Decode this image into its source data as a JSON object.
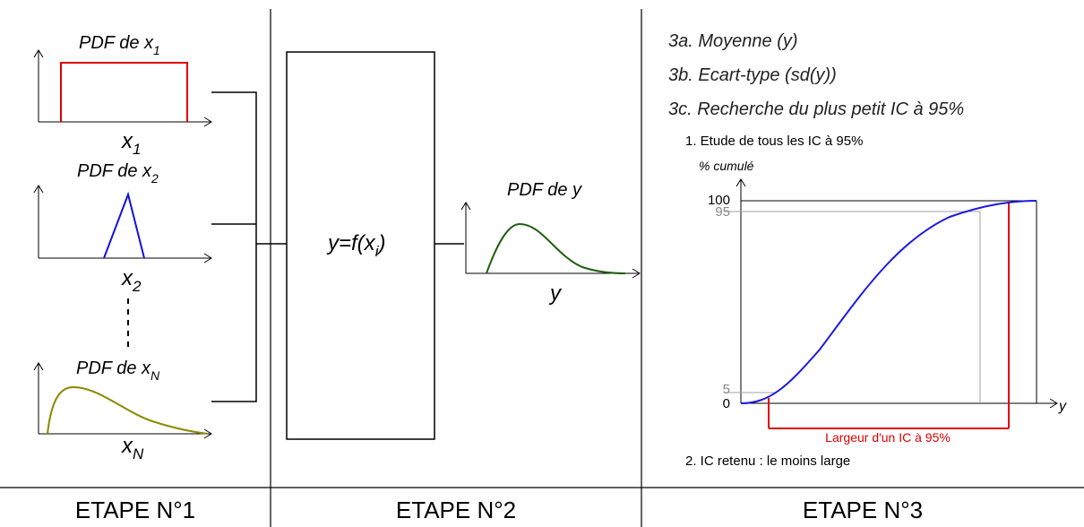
{
  "step1": {
    "pdf_labels": [
      {
        "prefix": "PDF de x",
        "sub": "1"
      },
      {
        "prefix": "PDF de x",
        "sub": "2"
      },
      {
        "prefix": "PDF de x",
        "sub": "N"
      }
    ],
    "axis_labels": [
      {
        "main": "x",
        "sub": "1"
      },
      {
        "main": "x",
        "sub": "2"
      },
      {
        "main": "x",
        "sub": "N"
      }
    ],
    "colors": {
      "uniform": "#e00000",
      "triangle": "#1010e0",
      "skewed": "#8a8a00"
    }
  },
  "step2": {
    "function": {
      "main": "y=f(x",
      "sub": "i",
      "close": ")"
    },
    "output_label": "PDF de y",
    "output_axis": "y",
    "curve_color": "#1f5e10"
  },
  "step3": {
    "items": [
      "3a. Moyenne (y)",
      "3b. Ecart-type (sd(y))",
      "3c. Recherche du plus petit IC à 95%"
    ],
    "sub1": "1. Etude de tous les IC à 95%",
    "ylabel": "% cumulé",
    "ticks": [
      "100",
      "95",
      "5",
      "0"
    ],
    "xlabel": "y",
    "interval_label": "Largeur d'un IC à 95%",
    "sub2": "2. IC retenu : le moins large",
    "colors": {
      "cdf": "#1a1ae0",
      "interval": "#e00000",
      "guides": "#a0a0a0"
    }
  },
  "footer": {
    "stages": [
      "ETAPE N°1",
      "ETAPE N°2",
      "ETAPE N°3"
    ]
  }
}
